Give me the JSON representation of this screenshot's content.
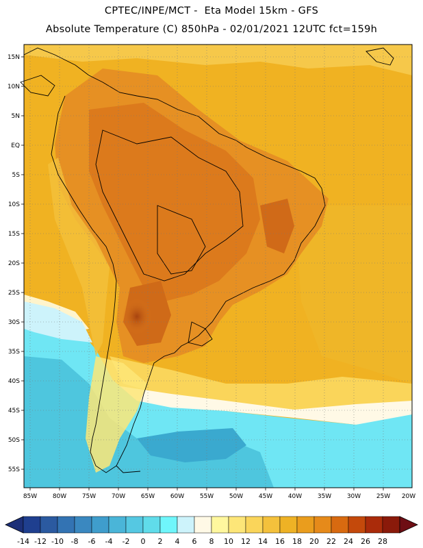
{
  "header": {
    "line1": "CPTEC/INPE/MCT -  Eta Model 15km - GFS",
    "line2": "Absolute Temperature (C) 850hPa - 02/01/2021 12UTC fct=159h"
  },
  "map": {
    "lat_labels": [
      "15N",
      "10N",
      "5N",
      "EQ",
      "5S",
      "10S",
      "15S",
      "20S",
      "25S",
      "30S",
      "35S",
      "40S",
      "45S",
      "50S",
      "55S"
    ],
    "lon_labels": [
      "85W",
      "80W",
      "75W",
      "70W",
      "65W",
      "60W",
      "55W",
      "50W",
      "45W",
      "40W",
      "35W",
      "30W",
      "25W",
      "20W"
    ]
  },
  "colorbar": {
    "labels": [
      "-14",
      "-12",
      "-10",
      "-8",
      "-6",
      "-4",
      "-2",
      "0",
      "2",
      "4",
      "6",
      "8",
      "10",
      "12",
      "14",
      "16",
      "18",
      "20",
      "22",
      "24",
      "26",
      "28"
    ],
    "colors": [
      "#1f3f8f",
      "#2b5aa0",
      "#3373b3",
      "#3a88c0",
      "#3f9dcc",
      "#4ab5d8",
      "#55c8e2",
      "#60dcea",
      "#6ff6fb",
      "#cdf3fb",
      "#fff9e6",
      "#fff79e",
      "#fde678",
      "#fad55a",
      "#f4c13c",
      "#eeb225",
      "#ea9d1d",
      "#e68a1a",
      "#d86a10",
      "#c4490b",
      "#aa2b0a",
      "#8a1a0a"
    ],
    "end_low_color": "#1c2f78",
    "end_high_color": "#6e0e14"
  }
}
